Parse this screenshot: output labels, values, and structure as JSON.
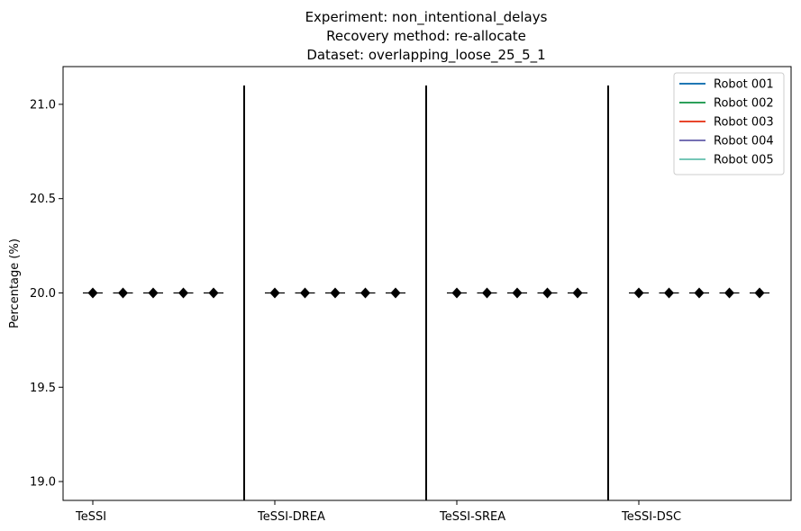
{
  "chart_data": {
    "type": "box",
    "title": [
      "Experiment: non_intentional_delays",
      "Recovery method: re-allocate",
      "Dataset: overlapping_loose_25_5_1"
    ],
    "xlabel": "",
    "ylabel": "Percentage (%)",
    "ylim": [
      18.9,
      21.2
    ],
    "yticks": [
      "19.0",
      "19.5",
      "20.0",
      "20.5",
      "21.0"
    ],
    "categories": [
      "TeSSI",
      "TeSSI-DREA",
      "TeSSI-SREA",
      "TeSSI-DSC"
    ],
    "separator_range": [
      18.9,
      21.1
    ],
    "legend_position": "top-right",
    "series": [
      {
        "name": "Robot 001",
        "color": "#1f77b4",
        "values": [
          20.0,
          20.0,
          20.0,
          20.0
        ]
      },
      {
        "name": "Robot 002",
        "color": "#2ca05a",
        "values": [
          20.0,
          20.0,
          20.0,
          20.0
        ]
      },
      {
        "name": "Robot 003",
        "color": "#e8462b",
        "values": [
          20.0,
          20.0,
          20.0,
          20.0
        ]
      },
      {
        "name": "Robot 004",
        "color": "#7570b3",
        "values": [
          20.0,
          20.0,
          20.0,
          20.0
        ]
      },
      {
        "name": "Robot 005",
        "color": "#76c7b7",
        "values": [
          20.0,
          20.0,
          20.0,
          20.0
        ]
      }
    ]
  }
}
